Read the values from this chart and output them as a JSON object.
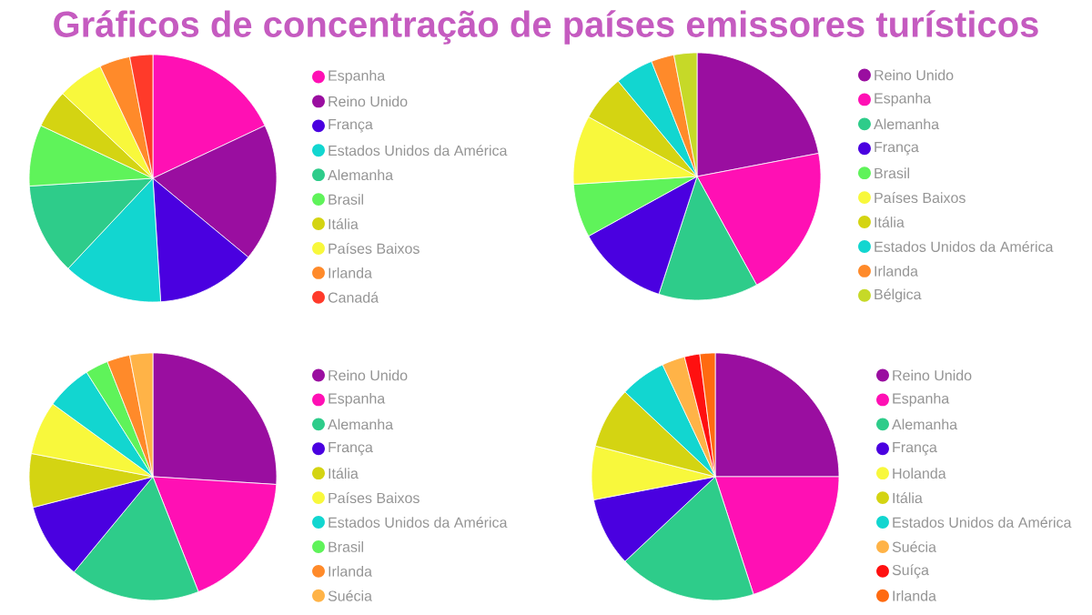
{
  "chart_data": [
    {
      "type": "pie",
      "title": "Gráficos de concentração de países emissores turísticos",
      "legend": "right",
      "categories": [
        "Espanha",
        "Reino Unido",
        "França",
        "Estados Unidos da América",
        "Alemanha",
        "Brasil",
        "Itália",
        "Países Baixos",
        "Irlanda",
        "Canadá"
      ],
      "values": [
        18,
        18,
        13,
        13,
        12,
        8,
        5,
        6,
        4,
        3
      ],
      "colors": [
        "#ff10b4",
        "#9a0ea0",
        "#4a00e0",
        "#12d6d0",
        "#2ecc8a",
        "#5ff35a",
        "#d4d412",
        "#f8f83c",
        "#ff8a2a",
        "#ff3a2a"
      ]
    },
    {
      "type": "pie",
      "legend": "right",
      "categories": [
        "Reino Unido",
        "Espanha",
        "Alemanha",
        "França",
        "Brasil",
        "Países Baixos",
        "Itália",
        "Estados Unidos da América",
        "Irlanda",
        "Bélgica"
      ],
      "values": [
        22,
        20,
        13,
        12,
        7,
        9,
        6,
        5,
        3,
        3
      ],
      "colors": [
        "#9a0ea0",
        "#ff10b4",
        "#2ecc8a",
        "#4a00e0",
        "#5ff35a",
        "#f8f83c",
        "#d4d412",
        "#12d6d0",
        "#ff8a2a",
        "#c6d928"
      ]
    },
    {
      "type": "pie",
      "legend": "right",
      "categories": [
        "Reino Unido",
        "Espanha",
        "Alemanha",
        "França",
        "Itália",
        "Países Baixos",
        "Estados Unidos da América",
        "Brasil",
        "Irlanda",
        "Suécia"
      ],
      "values": [
        26,
        18,
        17,
        10,
        7,
        7,
        6,
        3,
        3,
        3
      ],
      "colors": [
        "#9a0ea0",
        "#ff10b4",
        "#2ecc8a",
        "#4a00e0",
        "#d4d412",
        "#f8f83c",
        "#12d6d0",
        "#5ff35a",
        "#ff8a2a",
        "#ffb347"
      ]
    },
    {
      "type": "pie",
      "legend": "right",
      "categories": [
        "Reino Unido",
        "Espanha",
        "Alemanha",
        "França",
        "Holanda",
        "Itália",
        "Estados Unidos da América",
        "Suécia",
        "Suíça",
        "Irlanda"
      ],
      "values": [
        25,
        20,
        18,
        9,
        7,
        8,
        6,
        3,
        2,
        2
      ],
      "colors": [
        "#9a0ea0",
        "#ff10b4",
        "#2ecc8a",
        "#4a00e0",
        "#f8f83c",
        "#d4d412",
        "#12d6d0",
        "#ffb347",
        "#ff1010",
        "#ff6a10"
      ]
    }
  ]
}
